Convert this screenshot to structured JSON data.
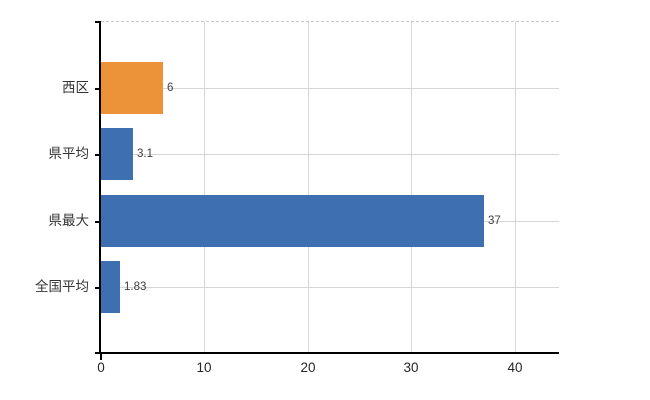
{
  "chart_data": {
    "type": "bar",
    "orientation": "horizontal",
    "title": "",
    "xlabel": "",
    "ylabel": "",
    "categories": [
      "西区",
      "県平均",
      "県最大",
      "全国平均"
    ],
    "values": [
      6,
      3.1,
      37,
      1.83
    ],
    "value_labels": [
      "6",
      "3.1",
      "37",
      "1.83"
    ],
    "bar_colors": [
      "#EC9339",
      "#3E70B1",
      "#3E70B1",
      "#3E70B1"
    ],
    "x_ticks": [
      0,
      10,
      20,
      30,
      40
    ],
    "x_tick_labels": [
      "0",
      "10",
      "20",
      "30",
      "40"
    ],
    "xlim": [
      0,
      44.3
    ],
    "grid": true,
    "legend": null,
    "colors": {
      "gridline": "#d6d6d6",
      "top_border": "#c9c9c9",
      "axis": "#000000",
      "background": "#ffffff",
      "category_text": "#333333",
      "value_text": "#404040",
      "tick_text": "#262626"
    }
  }
}
